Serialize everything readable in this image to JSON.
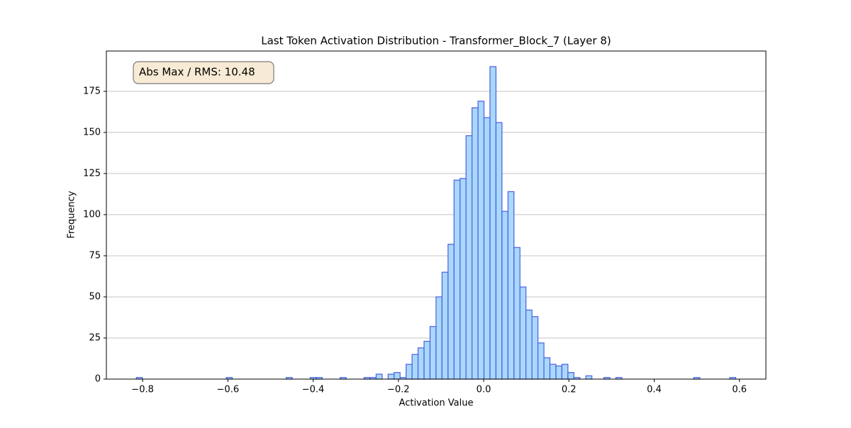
{
  "chart_data": {
    "type": "histogram",
    "title": "Last Token Activation Distribution - Transformer_Block_7 (Layer 8)",
    "xlabel": "Activation Value",
    "ylabel": "Frequency",
    "annotation": "Abs Max / RMS: 10.48",
    "bins": [
      -0.8147,
      -0.80064,
      -0.78658,
      -0.77252,
      -0.75846,
      -0.7444,
      -0.73034,
      -0.71628,
      -0.70222,
      -0.68816,
      -0.6741,
      -0.66004,
      -0.64598,
      -0.63192,
      -0.61786,
      -0.6038,
      -0.58974,
      -0.57568,
      -0.56162,
      -0.54756,
      -0.5335,
      -0.51944,
      -0.50538,
      -0.49132,
      -0.47726,
      -0.4632,
      -0.44914,
      -0.43508,
      -0.42102,
      -0.40696,
      -0.3929,
      -0.37884,
      -0.36478,
      -0.35072,
      -0.33666,
      -0.3226,
      -0.30854,
      -0.29448,
      -0.28042,
      -0.26636,
      -0.2523,
      -0.23824,
      -0.22418,
      -0.21012,
      -0.19606,
      -0.182,
      -0.16794,
      -0.15388,
      -0.13982,
      -0.12576,
      -0.1117,
      -0.09764,
      -0.08358,
      -0.06952,
      -0.05546,
      -0.0414,
      -0.02734,
      -0.01328,
      0.00078,
      0.01484,
      0.0289,
      0.04296,
      0.05702,
      0.07108,
      0.08514,
      0.0992,
      0.11326,
      0.12732,
      0.14138,
      0.15544,
      0.1695,
      0.18356,
      0.19762,
      0.21168,
      0.22574,
      0.2398,
      0.25386,
      0.26792,
      0.28198,
      0.29604,
      0.3101,
      0.32416,
      0.33822,
      0.35228,
      0.36634,
      0.3804,
      0.39446,
      0.40852,
      0.42258,
      0.43664,
      0.4507,
      0.46476,
      0.47882,
      0.49288,
      0.50694,
      0.521,
      0.53506,
      0.54912,
      0.56318,
      0.57724,
      0.5913
    ],
    "values": [
      1,
      0,
      0,
      0,
      0,
      0,
      0,
      0,
      0,
      0,
      0,
      0,
      0,
      0,
      0,
      1,
      0,
      0,
      0,
      0,
      0,
      0,
      0,
      0,
      0,
      1,
      0,
      0,
      0,
      1,
      1,
      0,
      0,
      0,
      1,
      0,
      0,
      0,
      1,
      1,
      3,
      0,
      3,
      4,
      1,
      9,
      15,
      19,
      23,
      32,
      50,
      65,
      82,
      121,
      122,
      148,
      165,
      169,
      159,
      190,
      156,
      102,
      114,
      80,
      56,
      42,
      38,
      22,
      13,
      9,
      8,
      9,
      4,
      1,
      0,
      2,
      0,
      0,
      1,
      0,
      1,
      0,
      0,
      0,
      0,
      0,
      0,
      0,
      0,
      0,
      0,
      0,
      0,
      1,
      0,
      0,
      0,
      0,
      0,
      1
    ],
    "color": "#a9d8fb",
    "edgecolor": "#4a5fe0",
    "xlim": [
      -0.885,
      0.662
    ],
    "xticks": [
      {
        "value": -0.8,
        "label": "−0.8"
      },
      {
        "value": -0.6,
        "label": "−0.6"
      },
      {
        "value": -0.4,
        "label": "−0.4"
      },
      {
        "value": -0.2,
        "label": "−0.2"
      },
      {
        "value": 0,
        "label": "0.0"
      },
      0.2,
      0.4,
      0.6
    ],
    "ylim": [
      0,
      199.5
    ],
    "yticks": [
      0,
      25,
      50,
      75,
      100,
      125,
      150,
      175
    ],
    "grid": "y"
  }
}
